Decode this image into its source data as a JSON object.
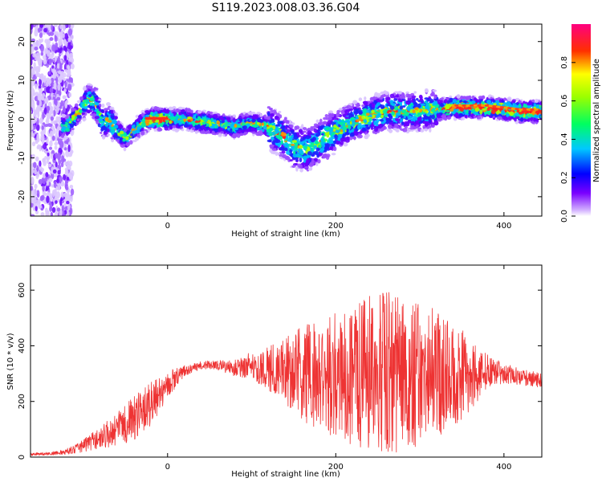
{
  "figure_title": "S119.2023.008.03.36.G04",
  "chart_data": [
    {
      "type": "heatmap",
      "xlabel": "Height of straight line (km)",
      "ylabel": "Frequency (Hz)",
      "xlim": [
        -163,
        445
      ],
      "ylim": [
        -25,
        24.5
      ],
      "xticks": [
        0,
        200,
        400
      ],
      "yticks": [
        -20,
        -10,
        0,
        10,
        20
      ],
      "colorbar": {
        "label": "Normalized spectral amplitude",
        "ticks": [
          "0.0",
          "0.2",
          "0.4",
          "0.6",
          "0.8"
        ],
        "range": [
          0,
          1
        ],
        "colormap": "hsv-rainbow (white → purple → blue → cyan → green → yellow → red → pink)"
      },
      "ridge": {
        "x": [
          -120,
          -105,
          -95,
          -85,
          -80,
          -75,
          -70,
          -60,
          -50,
          -40,
          -30,
          -20,
          0,
          20,
          50,
          80,
          100,
          120,
          140,
          150,
          165,
          180,
          200,
          230,
          260,
          280,
          300,
          340,
          380,
          420,
          445
        ],
        "y": [
          -2,
          2,
          5,
          4,
          0,
          -1,
          0,
          -3,
          -5,
          -3,
          -1,
          0,
          0,
          0,
          -1,
          -2,
          -1,
          -2,
          -5,
          -7,
          -8,
          -6,
          -3,
          0,
          2,
          2,
          2,
          3,
          3,
          2,
          2
        ]
      }
    },
    {
      "type": "line",
      "xlabel": "Height of straight line (km)",
      "ylabel": "SNR (10 * v/v)",
      "xlim": [
        -163,
        445
      ],
      "ylim": [
        0,
        690
      ],
      "xticks": [
        0,
        200,
        400
      ],
      "yticks": [
        0,
        200,
        400,
        600
      ],
      "line_color": "#ee3333",
      "series": [
        {
          "x": [
            -163,
            -140,
            -120,
            -100,
            -80,
            -60,
            -40,
            -20,
            0,
            20,
            40,
            60,
            80,
            100,
            120,
            140,
            160,
            180,
            200,
            220,
            240,
            260,
            280,
            300,
            320,
            340,
            360,
            380,
            400,
            420,
            445
          ],
          "mean": [
            10,
            12,
            18,
            40,
            70,
            100,
            140,
            190,
            260,
            310,
            330,
            330,
            320,
            330,
            320,
            310,
            300,
            300,
            300,
            300,
            310,
            300,
            300,
            300,
            300,
            300,
            290,
            310,
            300,
            290,
            270
          ],
          "amplitude": [
            5,
            5,
            10,
            25,
            40,
            60,
            80,
            80,
            50,
            20,
            15,
            20,
            30,
            50,
            80,
            120,
            170,
            210,
            230,
            260,
            280,
            300,
            280,
            260,
            230,
            200,
            130,
            60,
            40,
            30,
            30
          ]
        }
      ]
    }
  ]
}
